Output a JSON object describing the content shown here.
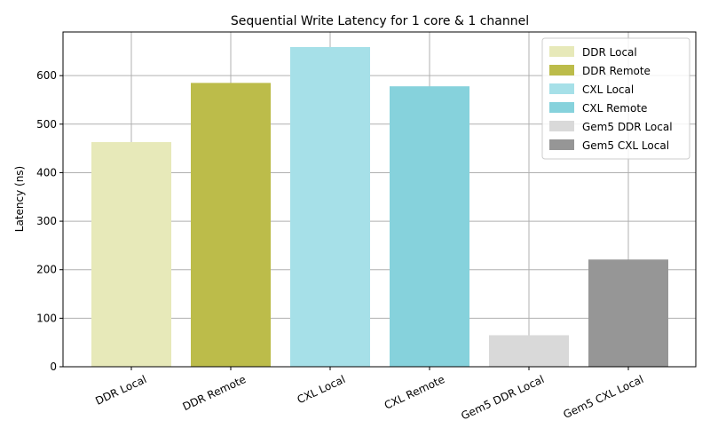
{
  "chart_data": {
    "type": "bar",
    "title": "Sequential Write Latency for 1 core & 1 channel",
    "xlabel": "",
    "ylabel": "Latency (ns)",
    "categories": [
      "DDR Local",
      "DDR Remote",
      "CXL Local",
      "CXL Remote",
      "Gem5 DDR Local",
      "Gem5 CXL Local"
    ],
    "values": [
      463,
      585,
      659,
      578,
      65,
      221
    ],
    "colors": [
      "#e7e9b9",
      "#bcbc4a",
      "#a6e0e8",
      "#86d2dc",
      "#d9d9d9",
      "#969696"
    ],
    "ylim": [
      0,
      690
    ],
    "yticks": [
      0,
      100,
      200,
      300,
      400,
      500,
      600
    ],
    "grid": true,
    "legend_position": "top-right",
    "legend": [
      "DDR Local",
      "DDR Remote",
      "CXL Local",
      "CXL Remote",
      "Gem5 DDR Local",
      "Gem5 CXL Local"
    ]
  }
}
